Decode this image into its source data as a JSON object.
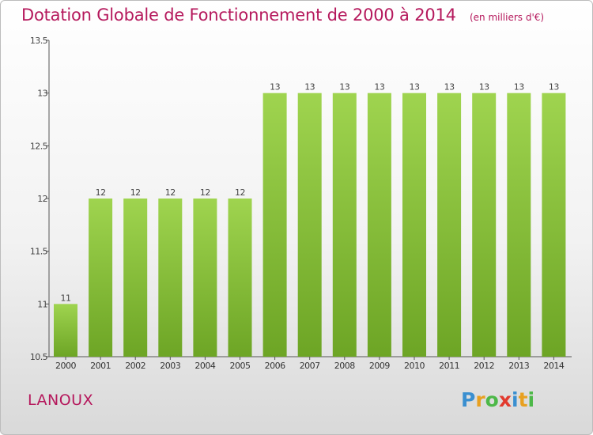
{
  "chart_data": {
    "type": "bar",
    "title": "Dotation Globale de Fonctionnement de 2000 à 2014",
    "unit": "(en milliers d'€)",
    "categories": [
      "2000",
      "2001",
      "2002",
      "2003",
      "2004",
      "2005",
      "2006",
      "2007",
      "2008",
      "2009",
      "2010",
      "2011",
      "2012",
      "2013",
      "2014"
    ],
    "values": [
      11,
      12,
      12,
      12,
      12,
      12,
      13,
      13,
      13,
      13,
      13,
      13,
      13,
      13,
      13
    ],
    "data_labels": [
      "11",
      "12",
      "12",
      "12",
      "12",
      "12",
      "13",
      "13",
      "13",
      "13",
      "13",
      "13",
      "13",
      "13",
      "13"
    ],
    "y_ticks": [
      "10.5",
      "11",
      "11.5",
      "12",
      "12.5",
      "13",
      "13.5"
    ],
    "ylim": [
      10.5,
      13.5
    ],
    "grid": false,
    "bar_color": "#8cc63f"
  },
  "commune": "LANOUX",
  "logo": {
    "letters": [
      "P",
      "r",
      "o",
      "x",
      "i",
      "t",
      "i"
    ],
    "colors": [
      "#3a8fd0",
      "#e8a020",
      "#4db848",
      "#e23a2e",
      "#3a8fd0",
      "#e8a020",
      "#4db848"
    ]
  }
}
